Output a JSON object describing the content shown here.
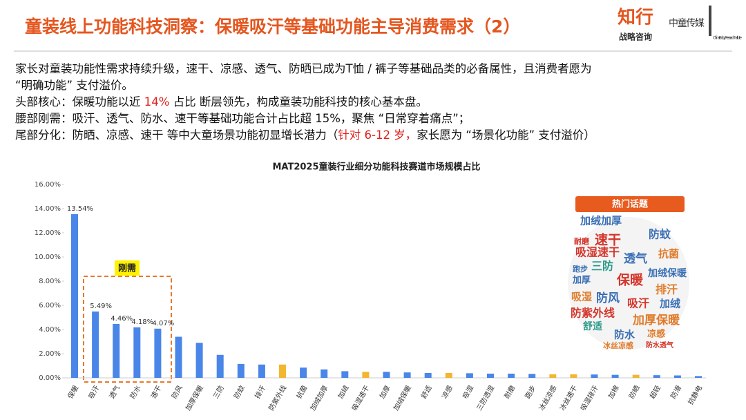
{
  "header": {
    "title": "童装线上功能科技洞察：保暖吸汗等基础功能主导消费需求（2）",
    "logo": {
      "brand": "知行",
      "brand_sub": "战略咨询",
      "media": "中童传媒",
      "institute": "China-Baby Research Institute"
    }
  },
  "body": {
    "lines": [
      [
        {
          "text": "家长对童装功能性需求持续升级，速干、凉感、透气、防晒已成为T恤 / 裤子等基础品类的必备属性，且消费者愿为"
        }
      ],
      [
        {
          "text": "“明确功能” 支付溢价。"
        }
      ],
      [
        {
          "text": "头部核心：保暖功能以近 "
        },
        {
          "text": "14%",
          "highlight": true
        },
        {
          "text": " 占比 断层领先，构成童装功能科技的核心基本盘。"
        }
      ],
      [
        {
          "text": "腰部刚需：吸汗、透气、防水、速干等基础功能合计占比超 15%，聚焦 “日常穿着痛点”；"
        }
      ],
      [
        {
          "text": "尾部分化：防晒、凉感、速干 等中大童场景功能初显增长潜力（"
        },
        {
          "text": "针对 6-12 岁，",
          "highlight": true
        },
        {
          "text": "家长愿为 “场景化功能” 支付溢价）"
        }
      ]
    ]
  },
  "chart_data": {
    "type": "bar",
    "title": "MAT2025童装行业细分功能科技赛道市场规模占比",
    "categories": [
      "保暖",
      "吸汗",
      "透气",
      "防水",
      "速干",
      "防风",
      "加厚保暖",
      "三防",
      "防蚊",
      "排汗",
      "防紫外线",
      "抗菌",
      "加绒加厚",
      "加绒",
      "吸湿速干",
      "加厚",
      "加绒保暖",
      "舒适",
      "凉感",
      "吸湿",
      "三防透湿",
      "耐磨",
      "跑步",
      "冰丝凉感",
      "冰丝速干",
      "吸湿排汗",
      "加棉",
      "防晒",
      "超轻",
      "防滑",
      "抗静电"
    ],
    "values": [
      13.54,
      5.49,
      4.46,
      4.18,
      4.07,
      3.4,
      2.9,
      1.9,
      1.15,
      1.1,
      1.1,
      0.85,
      0.7,
      0.55,
      0.5,
      0.5,
      0.45,
      0.4,
      0.4,
      0.38,
      0.35,
      0.35,
      0.33,
      0.3,
      0.3,
      0.28,
      0.25,
      0.25,
      0.22,
      0.2,
      0.15
    ],
    "value_labels": [
      "13.54%",
      "5.49%",
      "4.46%",
      "4.18%",
      "4.07%",
      null,
      null,
      null,
      null,
      null,
      null,
      null,
      null,
      null,
      null,
      null,
      null,
      null,
      null,
      null,
      null,
      null,
      null,
      null,
      null,
      null,
      null,
      null,
      null,
      null,
      null
    ],
    "colors": [
      "#4a86e8",
      "#4a86e8",
      "#4a86e8",
      "#4a86e8",
      "#4a86e8",
      "#4a86e8",
      "#4a86e8",
      "#4a86e8",
      "#4a86e8",
      "#4a86e8",
      "#f2b630",
      "#4a86e8",
      "#4a86e8",
      "#4a86e8",
      "#f2b630",
      "#4a86e8",
      "#4a86e8",
      "#4a86e8",
      "#f2b630",
      "#4a86e8",
      "#4a86e8",
      "#4a86e8",
      "#4a86e8",
      "#f2b630",
      "#f2b630",
      "#4a86e8",
      "#4a86e8",
      "#f2b630",
      "#4a86e8",
      "#4a86e8",
      "#4a86e8"
    ],
    "ylim": [
      0,
      16
    ],
    "yticks": [
      {
        "value": 0,
        "label": "0.00%"
      },
      {
        "value": 2,
        "label": "2.00%"
      },
      {
        "value": 4,
        "label": "4.00%"
      },
      {
        "value": 6,
        "label": "6.00%"
      },
      {
        "value": 8,
        "label": "8.00%"
      },
      {
        "value": 10,
        "label": "10.00%"
      },
      {
        "value": 12,
        "label": "12.00%"
      },
      {
        "value": 14,
        "label": "14.00%"
      },
      {
        "value": 16,
        "label": "16.00%"
      }
    ],
    "grid": false,
    "annotations": [
      {
        "text": "刚需"
      }
    ]
  },
  "word_cloud": {
    "title": "热门话题",
    "words": [
      {
        "text": "加绒加厚",
        "color": "#3a6fb5"
      },
      {
        "text": "防蚊",
        "color": "#3a6fb5"
      },
      {
        "text": "速干",
        "color": "#d4342a"
      },
      {
        "text": "吸湿速干",
        "color": "#d4342a"
      },
      {
        "text": "抗菌",
        "color": "#e07b2a"
      },
      {
        "text": "三防",
        "color": "#2a9a8a"
      },
      {
        "text": "透气",
        "color": "#3a6fb5"
      },
      {
        "text": "加绒保暖",
        "color": "#3a6fb5"
      },
      {
        "text": "加厚",
        "color": "#3a6fb5"
      },
      {
        "text": "保暖",
        "color": "#d4342a"
      },
      {
        "text": "排汗",
        "color": "#e07b2a"
      },
      {
        "text": "吸湿",
        "color": "#e07b2a"
      },
      {
        "text": "防风",
        "color": "#3a6fb5"
      },
      {
        "text": "吸汗",
        "color": "#d4342a"
      },
      {
        "text": "加绒",
        "color": "#3a6fb5"
      },
      {
        "text": "防紫外线",
        "color": "#d4342a"
      },
      {
        "text": "加厚保暖",
        "color": "#e07b2a"
      },
      {
        "text": "舒适",
        "color": "#2a9a8a"
      },
      {
        "text": "防水",
        "color": "#3a6fb5"
      },
      {
        "text": "凉感",
        "color": "#e07b2a"
      },
      {
        "text": "耐磨",
        "color": "#d4342a"
      },
      {
        "text": "跑步",
        "color": "#3a6fb5"
      },
      {
        "text": "冰丝凉感",
        "color": "#e07b2a"
      },
      {
        "text": "防水透气",
        "color": "#d4342a"
      }
    ]
  }
}
